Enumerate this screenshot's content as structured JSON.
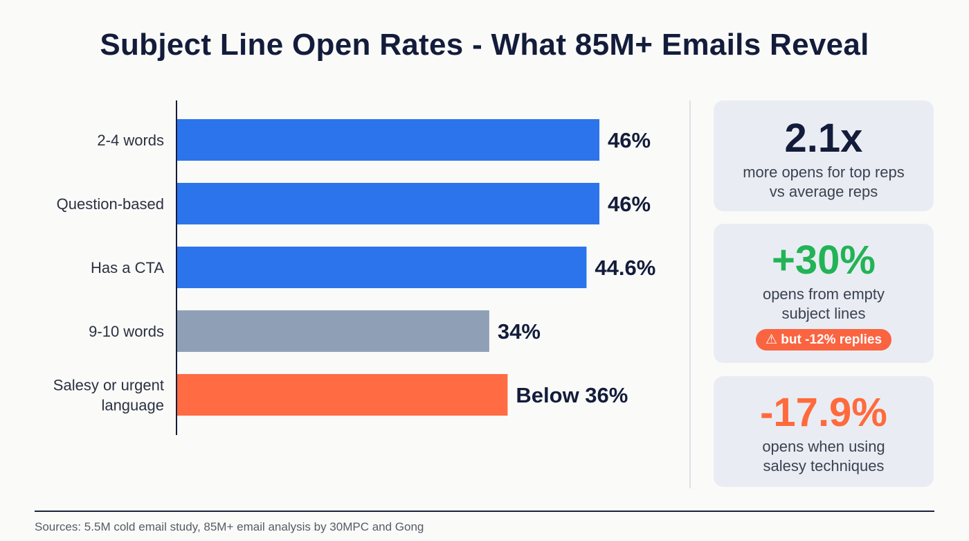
{
  "title": "Subject Line Open Rates - What 85M+ Emails Reveal",
  "chart_data": {
    "type": "bar",
    "orientation": "horizontal",
    "categories": [
      "2-4 words",
      "Question-based",
      "Has a CTA",
      "9-10 words",
      "Salesy or urgent language"
    ],
    "values": [
      46,
      46,
      44.6,
      34,
      36
    ],
    "data_labels": [
      "46%",
      "46%",
      "44.6%",
      "34%",
      "Below 36%"
    ],
    "colors": [
      "#2b74ec",
      "#2b74ec",
      "#2b74ec",
      "#8fa0b6",
      "#ff6b42"
    ],
    "xlim": [
      0,
      46
    ],
    "grid": false,
    "title": "",
    "xlabel": "",
    "ylabel": ""
  },
  "cards": [
    {
      "value": "2.1x",
      "color": "#131c3a",
      "lines": [
        "more opens for top reps",
        "vs average reps"
      ]
    },
    {
      "value": "+30%",
      "color": "#22b356",
      "lines": [
        "opens from empty",
        "subject lines"
      ],
      "warning": "but -12% replies",
      "warning_icon": "warning-triangle-icon"
    },
    {
      "value": "-17.9%",
      "color": "#ff6a3d",
      "lines": [
        "opens when using",
        "salesy techniques"
      ]
    }
  ],
  "source": "Sources: 5.5M cold email study, 85M+ email analysis by 30MPC and Gong"
}
